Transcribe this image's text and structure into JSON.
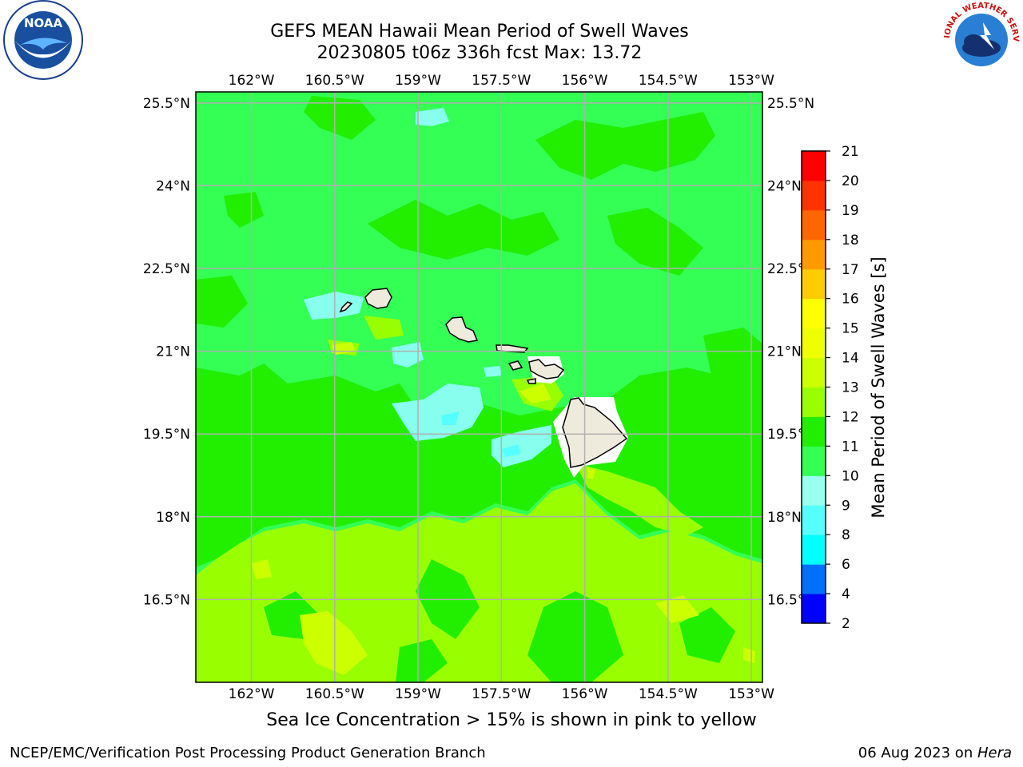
{
  "header": {
    "title_line1": "GEFS MEAN Hawaii Mean Period of Swell Waves",
    "title_line2": "20230805 t06z 336h fcst   Max: 13.72"
  },
  "logos": {
    "left": {
      "icon": "noaa-logo",
      "text": "NOAA"
    },
    "right": {
      "icon": "nws-logo",
      "text": "NATIONAL WEATHER SERVICE"
    }
  },
  "map": {
    "lon_labels": [
      "162°W",
      "160.5°W",
      "159°W",
      "157.5°W",
      "156°W",
      "154.5°W",
      "153°W"
    ],
    "lat_labels_left": [
      "25.5°N",
      "24°N",
      "22.5°N",
      "21°N",
      "19.5°N",
      "18°N",
      "16.5°N"
    ],
    "lat_labels_right": [
      "25.5°N",
      "24°N",
      "22.5°N",
      "21°N",
      "19.5°N",
      "18°N",
      "16.5°N"
    ],
    "lon_range": [
      -163,
      -152.8
    ],
    "lat_range": [
      15,
      25.7
    ],
    "grid": true,
    "land_color": "#efebdc",
    "ocean_colors": {
      "10-11": "#33ff55",
      "11-12": "#22ee00",
      "12-13": "#99ff00",
      "13-14": "#ccff00",
      "9-10": "#88ffee"
    }
  },
  "colorbar": {
    "title": "Mean Period of Swell Waves [s]",
    "ticks": [
      "2",
      "4",
      "6",
      "8",
      "9",
      "10",
      "11",
      "12",
      "13",
      "14",
      "15",
      "16",
      "17",
      "18",
      "19",
      "20",
      "21"
    ],
    "colors": [
      "#0000ff",
      "#0070ff",
      "#00ffff",
      "#55ffff",
      "#99ffee",
      "#33ff55",
      "#22ee00",
      "#99ff00",
      "#ccff00",
      "#eeff00",
      "#ffff00",
      "#ffcc00",
      "#ff9900",
      "#ff6600",
      "#ff3300",
      "#ff0000"
    ]
  },
  "caption": "Sea Ice Concentration > 15% is shown in pink to yellow",
  "footer": {
    "left": "NCEP/EMC/Verification Post Processing Product Generation Branch",
    "right_date": "06 Aug 2023 on ",
    "right_machine": "Hera"
  }
}
